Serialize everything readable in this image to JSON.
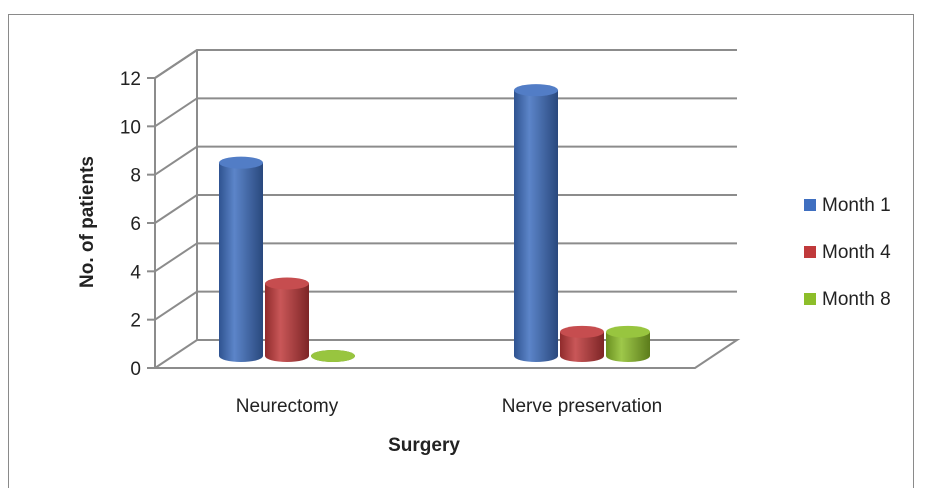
{
  "chart_data": {
    "type": "bar",
    "style": "3d-cylinder",
    "categories": [
      "Neurectomy",
      "Nerve preservation"
    ],
    "series": [
      {
        "name": "Month 1",
        "values": [
          8,
          11
        ],
        "color": "#3F6FC0"
      },
      {
        "name": "Month 4",
        "values": [
          3,
          1
        ],
        "color": "#C0393B"
      },
      {
        "name": "Month 8",
        "values": [
          0,
          1
        ],
        "color": "#8DBE2A"
      }
    ],
    "yticks": [
      "0",
      "2",
      "4",
      "6",
      "8",
      "10",
      "12"
    ],
    "ylim": [
      0,
      12
    ],
    "xlabel": "Surgery",
    "ylabel": "No. of patients",
    "grid": true,
    "legend_position": "right"
  }
}
